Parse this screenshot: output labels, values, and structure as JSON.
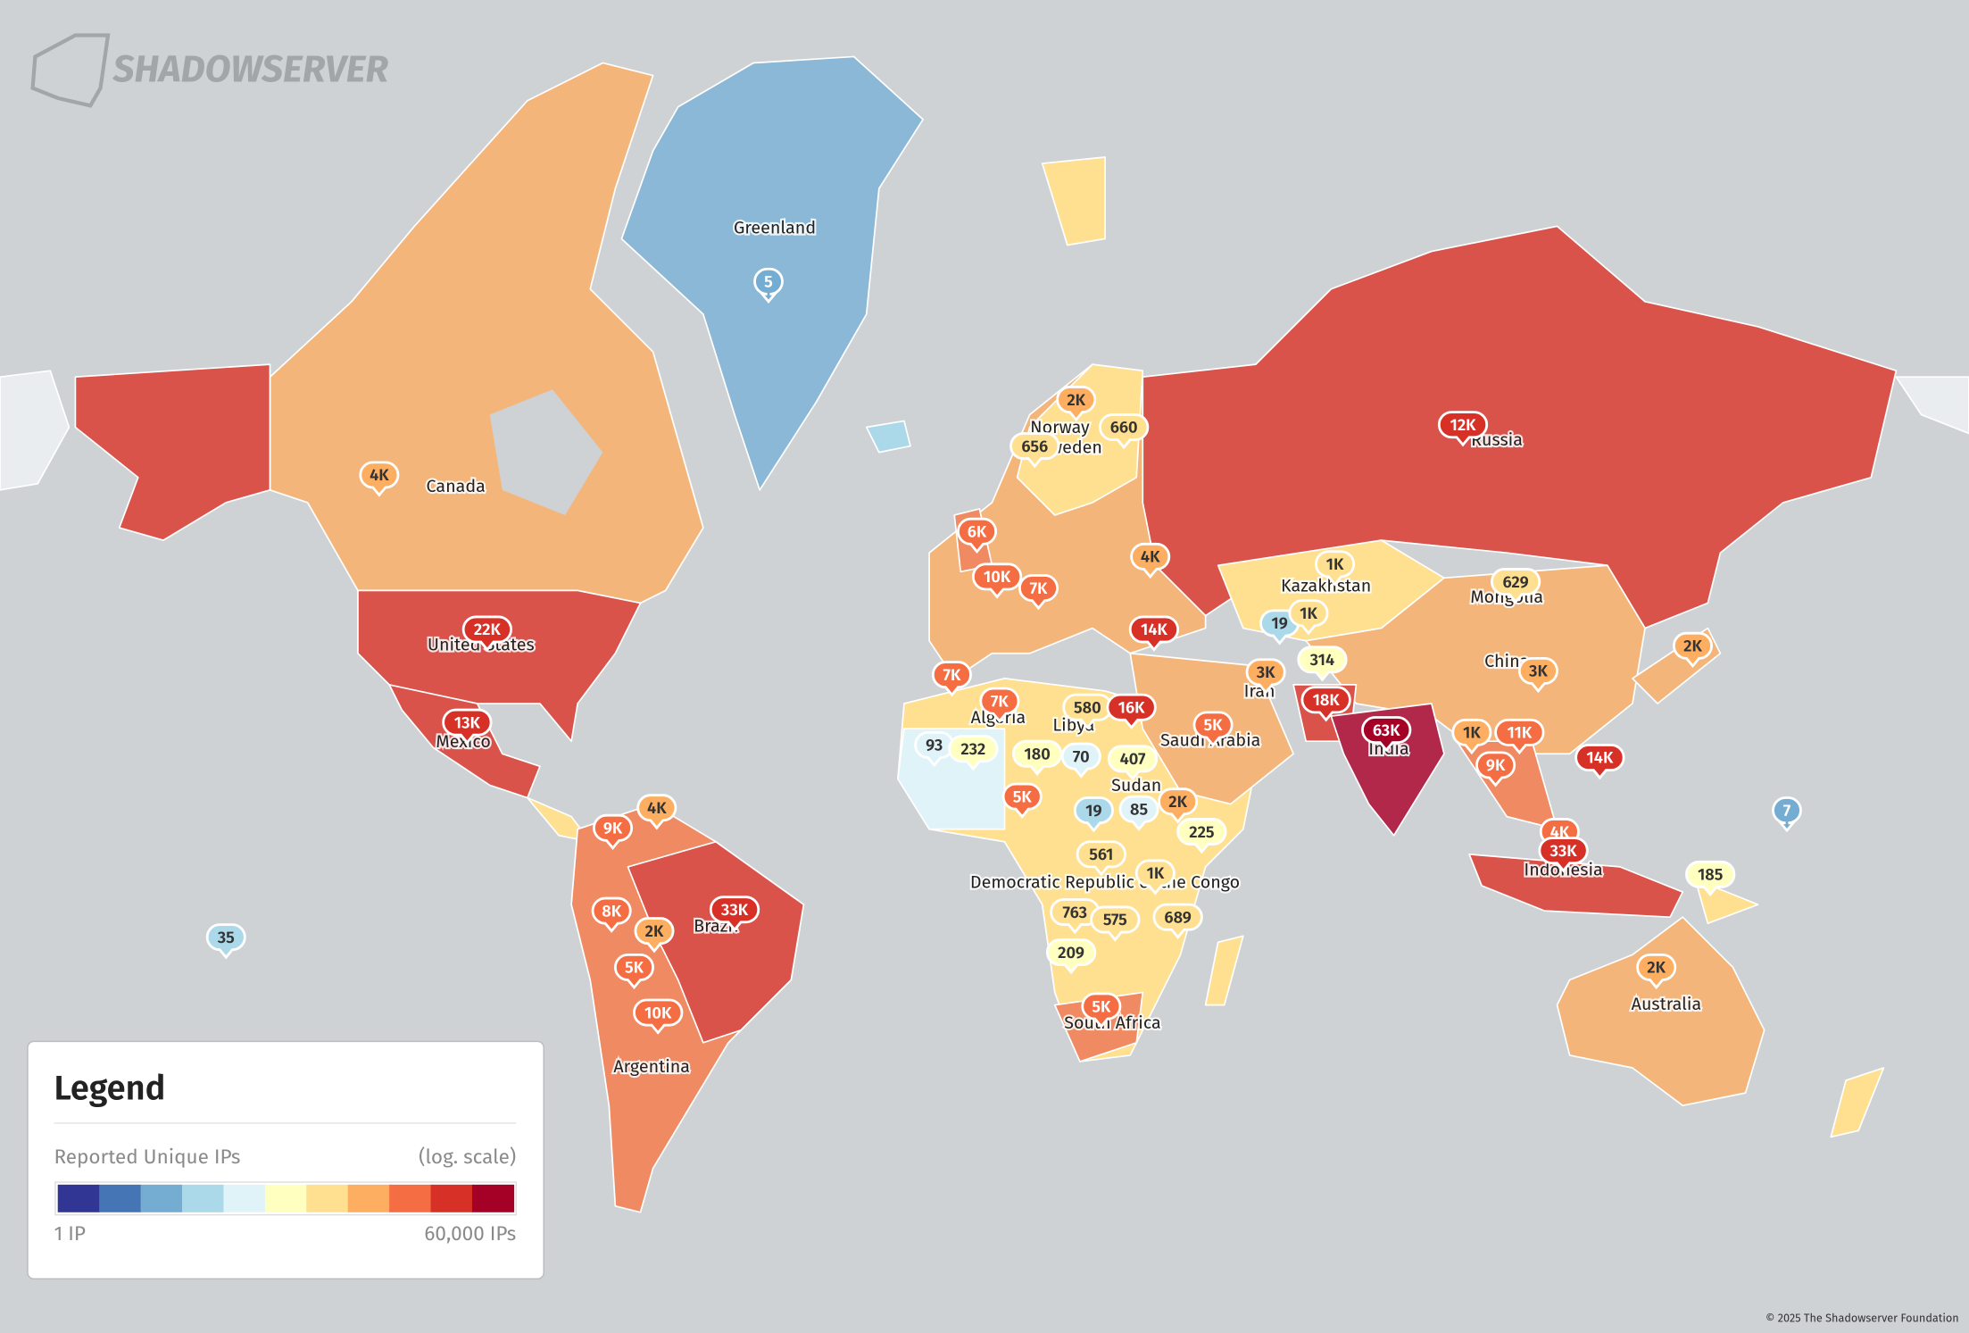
{
  "logo": "SHADOWSERVER",
  "labels": [
    "Greenland",
    "Canada",
    "United States",
    "Mexico",
    "Russia",
    "Norway",
    "Sweden",
    "Kazakhstan",
    "Mongolia",
    "China",
    "Iran",
    "Saudi Arabia",
    "India",
    "Algeria",
    "Libya",
    "Sudan",
    "Democratic Republic of the Congo",
    "Indonesia",
    "Australia",
    "Brazil",
    "Argentina",
    "South Africa"
  ],
  "markers": [
    {
      "label": "5",
      "color": "#74add1"
    },
    {
      "label": "4K",
      "color": "#fdae61"
    },
    {
      "label": "22K",
      "color": "#d73027"
    },
    {
      "label": "13K",
      "color": "#d73027"
    },
    {
      "label": "12K",
      "color": "#d73027"
    },
    {
      "label": "2K",
      "color": "#fdae61"
    },
    {
      "label": "656",
      "color": "#fee090"
    },
    {
      "label": "660",
      "color": "#fee090"
    },
    {
      "label": "6K",
      "color": "#f46d43"
    },
    {
      "label": "10K",
      "color": "#f46d43"
    },
    {
      "label": "7K",
      "color": "#f46d43"
    },
    {
      "label": "4K",
      "color": "#fdae61"
    },
    {
      "label": "14K",
      "color": "#d73027"
    },
    {
      "label": "1K",
      "color": "#fee090"
    },
    {
      "label": "19",
      "color": "#abd9e9"
    },
    {
      "label": "1K",
      "color": "#fee090"
    },
    {
      "label": "314",
      "color": "#ffffbf"
    },
    {
      "label": "629",
      "color": "#fee090"
    },
    {
      "label": "2K",
      "color": "#fdae61"
    },
    {
      "label": "3K",
      "color": "#fdae61"
    },
    {
      "label": "18K",
      "color": "#d73027"
    },
    {
      "label": "3K",
      "color": "#fdae61"
    },
    {
      "label": "7K",
      "color": "#f46d43"
    },
    {
      "label": "7K",
      "color": "#f46d43"
    },
    {
      "label": "580",
      "color": "#fee090"
    },
    {
      "label": "16K",
      "color": "#d73027"
    },
    {
      "label": "5K",
      "color": "#f46d43"
    },
    {
      "label": "63K",
      "color": "#a50026"
    },
    {
      "label": "1K",
      "color": "#fdae61"
    },
    {
      "label": "11K",
      "color": "#f46d43"
    },
    {
      "label": "14K",
      "color": "#d73027"
    },
    {
      "label": "9K",
      "color": "#f46d43"
    },
    {
      "label": "93",
      "color": "#e0f3f8"
    },
    {
      "label": "232",
      "color": "#ffffbf"
    },
    {
      "label": "180",
      "color": "#ffffbf"
    },
    {
      "label": "70",
      "color": "#e0f3f8"
    },
    {
      "label": "407",
      "color": "#ffffbf"
    },
    {
      "label": "5K",
      "color": "#f46d43"
    },
    {
      "label": "19",
      "color": "#abd9e9"
    },
    {
      "label": "85",
      "color": "#e0f3f8"
    },
    {
      "label": "2K",
      "color": "#fdae61"
    },
    {
      "label": "225",
      "color": "#ffffbf"
    },
    {
      "label": "7",
      "color": "#74add1"
    },
    {
      "label": "4K",
      "color": "#f46d43"
    },
    {
      "label": "33K",
      "color": "#d73027"
    },
    {
      "label": "185",
      "color": "#ffffbf"
    },
    {
      "label": "561",
      "color": "#fee090"
    },
    {
      "label": "1K",
      "color": "#fee090"
    },
    {
      "label": "763",
      "color": "#fee090"
    },
    {
      "label": "575",
      "color": "#fee090"
    },
    {
      "label": "689",
      "color": "#fee090"
    },
    {
      "label": "209",
      "color": "#ffffbf"
    },
    {
      "label": "5K",
      "color": "#f46d43"
    },
    {
      "label": "2K",
      "color": "#fdae61"
    },
    {
      "label": "9K",
      "color": "#f46d43"
    },
    {
      "label": "4K",
      "color": "#fdae61"
    },
    {
      "label": "8K",
      "color": "#f46d43"
    },
    {
      "label": "33K",
      "color": "#d73027"
    },
    {
      "label": "2K",
      "color": "#fdae61"
    },
    {
      "label": "5K",
      "color": "#f46d43"
    },
    {
      "label": "10K",
      "color": "#f46d43"
    },
    {
      "label": "35",
      "color": "#abd9e9"
    }
  ],
  "legend": {
    "title": "Legend",
    "measure": "Reported Unique IPs",
    "scale": "(log. scale)",
    "min_label": "1 IP",
    "max_label": "60,000 IPs",
    "colors": [
      "#313695",
      "#4575b4",
      "#74add1",
      "#abd9e9",
      "#e0f3f8",
      "#ffffbf",
      "#fee090",
      "#fdae61",
      "#f46d43",
      "#d73027",
      "#a50026"
    ]
  },
  "footer": "© 2025 The Shadowserver Foundation"
}
